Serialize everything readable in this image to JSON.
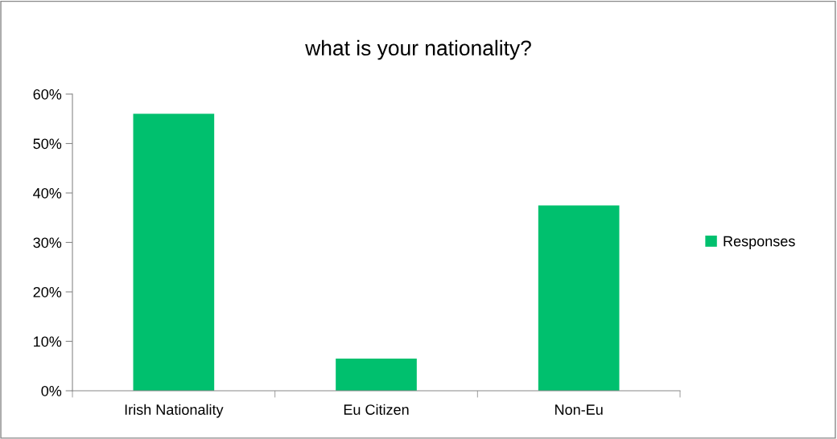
{
  "chart_data": {
    "type": "bar",
    "title": "what is your nationality?",
    "categories": [
      "Irish Nationality",
      "Eu Citizen",
      "Non-Eu"
    ],
    "series": [
      {
        "name": "Responses",
        "color": "#00c06e",
        "values": [
          56,
          6.5,
          37.5
        ]
      }
    ],
    "ylim": [
      0,
      60
    ],
    "yticks": [
      {
        "value": 0,
        "label": "0%"
      },
      {
        "value": 10,
        "label": "10%"
      },
      {
        "value": 20,
        "label": "20%"
      },
      {
        "value": 30,
        "label": "30%"
      },
      {
        "value": 40,
        "label": "40%"
      },
      {
        "value": 50,
        "label": "50%"
      },
      {
        "value": 60,
        "label": "60%"
      }
    ],
    "grid": false,
    "legend": "right"
  }
}
